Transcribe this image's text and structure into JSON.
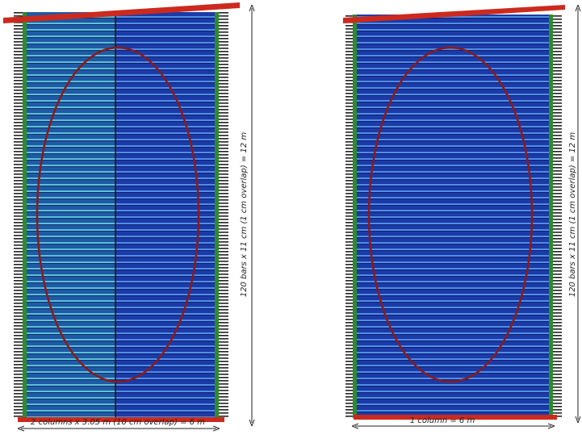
{
  "panels": [
    {
      "height_label": "120 bars x 11 cm (1 cm overlap) = 12 m",
      "width_label": "2 columns x 3.05 m (10 cm overlap) = 6 m"
    },
    {
      "height_label": "120 bars x 11 cm (1 cm overlap) = 12 m",
      "width_label": "1 column = 6 m"
    }
  ]
}
